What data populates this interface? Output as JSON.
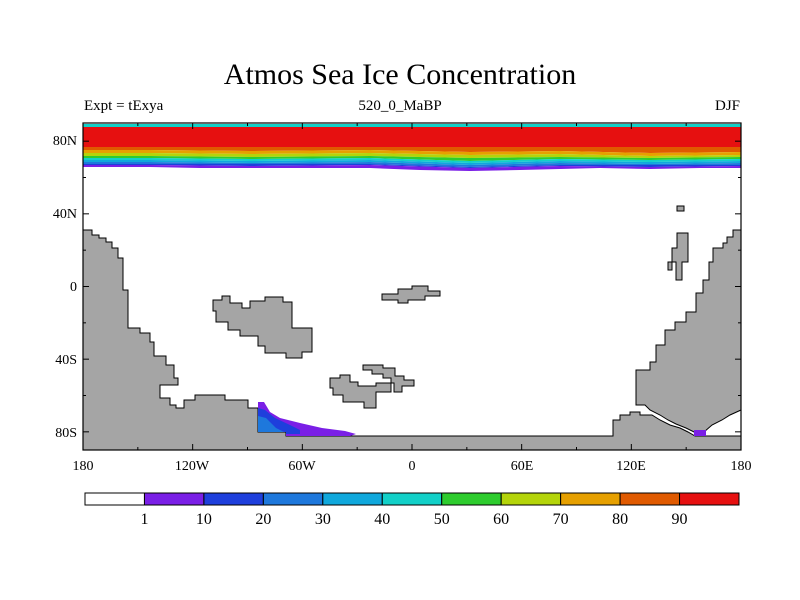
{
  "title": "Atmos Sea Ice Concentration",
  "subtitle_left": "Expt = tExya",
  "subtitle_center": "520_0_MaBP",
  "subtitle_right": "DJF",
  "land_color": "#a5a5a5",
  "lat_ticks": [
    "80N",
    "40N",
    "0",
    "40S",
    "80S"
  ],
  "lon_ticks": [
    "180",
    "120W",
    "60W",
    "0",
    "60E",
    "120E",
    "180"
  ],
  "colorbar": {
    "colors": [
      "#ffffff",
      "#7a1fe6",
      "#1e3fdc",
      "#1e78dc",
      "#10a8dc",
      "#12d0c8",
      "#2ecc2e",
      "#b4d40a",
      "#e6a000",
      "#e05a00",
      "#e61010"
    ],
    "labels": [
      "1",
      "10",
      "20",
      "30",
      "40",
      "50",
      "60",
      "70",
      "80",
      "90"
    ]
  },
  "chart_data": {
    "type": "map",
    "variable": "Atmos Sea Ice Concentration",
    "units": "%",
    "levels": [
      1,
      10,
      20,
      30,
      40,
      50,
      60,
      70,
      80,
      90
    ],
    "lon_range": [
      -180,
      180
    ],
    "lat_range": [
      -90,
      90
    ],
    "arctic_ice": {
      "edge_lat_approx": 67,
      "max_concentration": 90
    },
    "antarctic_ice": {
      "location": "near 60W-30W, 65S-80S",
      "concentration_range": [
        1,
        30
      ]
    }
  }
}
